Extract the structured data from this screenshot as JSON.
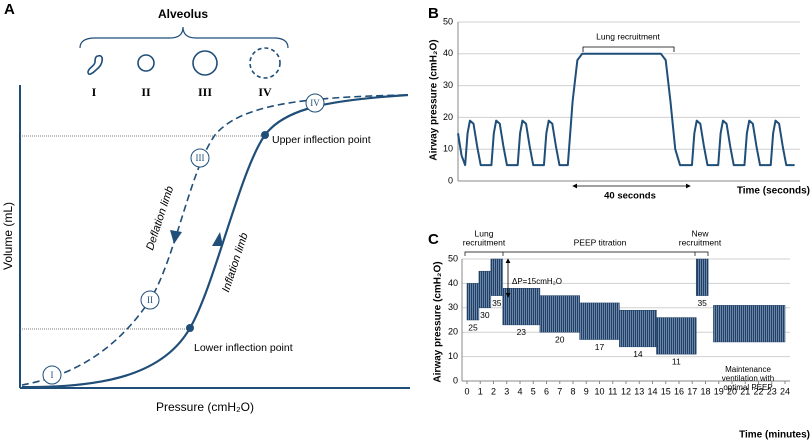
{
  "chart_data": [
    {
      "type": "diagram",
      "label": "A",
      "title": "Alveolus",
      "stages": [
        "I",
        "II",
        "III",
        "IV"
      ],
      "points": [
        "I",
        "II",
        "III",
        "IV"
      ],
      "annotations": [
        "Upper inflection point",
        "Lower inflection point",
        "Deflation limb",
        "Inflation limb"
      ],
      "xlabel": "Pressure (cmH₂O)",
      "ylabel": "Volume (mL)",
      "color": "#1f4e79"
    },
    {
      "type": "line",
      "label": "B",
      "ylabel": "Airway pressure (cmH₂O)",
      "xlabel": "Time (seconds)",
      "annotations": [
        "Lung recruitment",
        "40 seconds"
      ],
      "x": [
        0,
        1.5,
        3,
        4,
        5,
        6.5,
        8,
        9.5,
        14,
        15,
        16,
        17.5,
        19,
        20.5,
        25,
        26,
        27,
        28.5,
        30,
        31.5,
        36,
        37,
        38,
        39.5,
        41,
        42.5,
        46,
        48,
        50,
        52,
        85,
        87,
        89,
        91,
        93,
        98,
        99,
        100,
        101.5,
        103,
        104.5,
        109,
        110,
        111,
        112.5,
        114,
        115.5,
        120,
        121,
        122,
        123.5,
        125,
        126.5,
        131,
        132,
        133,
        134.5,
        136,
        137.5,
        141
      ],
      "values": [
        15,
        8,
        5,
        15,
        19,
        18,
        11,
        5,
        5,
        15,
        19,
        18,
        11,
        5,
        5,
        15,
        19,
        18,
        11,
        5,
        5,
        15,
        19,
        18,
        11,
        5,
        5,
        25,
        38,
        40,
        40,
        38,
        25,
        10,
        5,
        5,
        15,
        19,
        18,
        11,
        5,
        5,
        15,
        19,
        18,
        11,
        5,
        5,
        15,
        19,
        18,
        11,
        5,
        5,
        15,
        19,
        18,
        11,
        5,
        5
      ],
      "xlim": [
        0,
        142
      ],
      "ylim": [
        0,
        50
      ],
      "yticks": [
        0,
        10,
        20,
        30,
        40,
        50
      ],
      "grid": true,
      "color": "#1f4e79"
    },
    {
      "type": "block",
      "label": "C",
      "ylabel": "Airway pressure (cmH₂O)",
      "xlabel": "Time (minutes)",
      "phases": [
        [
          "Lung",
          "recruitment"
        ],
        [
          "PEEP titration"
        ],
        [
          "New",
          "recruitment"
        ]
      ],
      "delta": "ΔP=15cmH₂O",
      "note": [
        "Maintenance",
        "ventilation with",
        "optimal PEEP"
      ],
      "starts": [
        0,
        0.9,
        1.8,
        2.7,
        5.5,
        8.5,
        11.5,
        14.3,
        17.3,
        18.6
      ],
      "ends": [
        0.9,
        1.8,
        2.7,
        5.5,
        8.5,
        11.5,
        14.3,
        17.3,
        18.2,
        24
      ],
      "values": [
        25,
        30,
        35,
        23,
        20,
        17,
        14,
        11,
        35,
        16
      ],
      "value_labels": [
        "25",
        "30",
        "35",
        "23",
        "20",
        "17",
        "14",
        "11",
        "35",
        null
      ],
      "peaks": [
        40,
        45,
        50,
        38,
        35,
        32,
        29,
        26,
        50,
        31
      ],
      "xlim": [
        0,
        24
      ],
      "xticks": [
        0,
        1,
        2,
        3,
        4,
        5,
        6,
        7,
        8,
        9,
        10,
        11,
        12,
        13,
        14,
        15,
        16,
        17,
        18,
        19,
        20,
        21,
        22,
        23,
        24
      ],
      "ylim": [
        0,
        50
      ],
      "yticks": [
        0,
        10,
        20,
        30,
        40,
        50
      ],
      "grid": true,
      "color": "#1f3f66"
    }
  ]
}
